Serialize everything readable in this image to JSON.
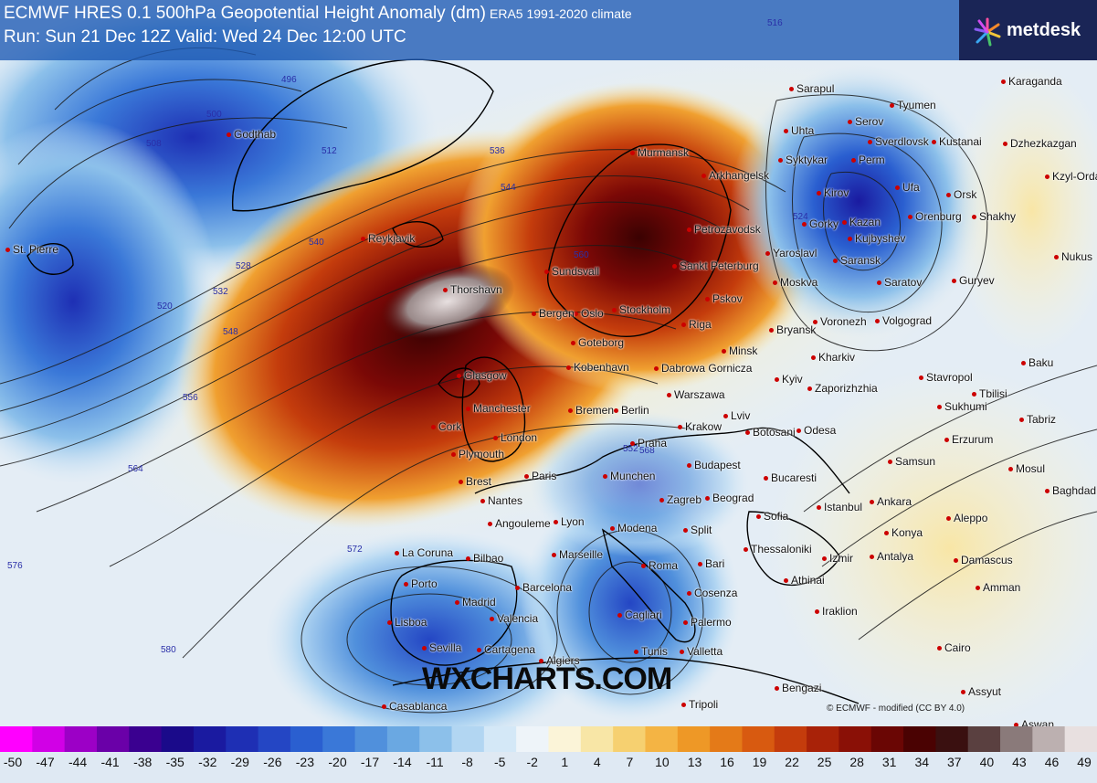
{
  "header": {
    "title": "ECMWF HRES 0.1 500hPa Geopotential Height Anomaly (dm)",
    "climate": "ERA5 1991-2020 climate",
    "run": "Run: Sun 21 Dec 12Z Valid: Wed 24 Dec 12:00 UTC"
  },
  "logo": {
    "text": "metdesk"
  },
  "watermark": "WXCHARTS.COM",
  "credit": "© ECMWF - modified (CC BY 4.0)",
  "colorbar": {
    "ticks": [
      "-50",
      "-47",
      "-44",
      "-41",
      "-38",
      "-35",
      "-32",
      "-29",
      "-26",
      "-23",
      "-20",
      "-17",
      "-14",
      "-11",
      "-8",
      "-5",
      "-2",
      "1",
      "4",
      "7",
      "10",
      "13",
      "16",
      "19",
      "22",
      "25",
      "28",
      "31",
      "34",
      "37",
      "40",
      "43",
      "46",
      "49"
    ],
    "colors": [
      "#ff00ff",
      "#d100e6",
      "#9c00c6",
      "#6a00a8",
      "#3a0090",
      "#1a0a8a",
      "#1a1aa0",
      "#1e2fb4",
      "#2446c4",
      "#2a5fd0",
      "#3a78d8",
      "#5090dc",
      "#6aa8e2",
      "#8cc0ea",
      "#b2d6f2",
      "#d4e8f7",
      "#eef4f9",
      "#fbf4d8",
      "#f8e6a6",
      "#f6d070",
      "#f4b444",
      "#ee9826",
      "#e47a18",
      "#d85a10",
      "#c43c0c",
      "#a82208",
      "#8a1006",
      "#6a0604",
      "#4a0202",
      "#3a1010",
      "#5a4040",
      "#8a7a7a",
      "#bcb0b0",
      "#e8e0e0"
    ]
  },
  "contour_labels": [
    "496",
    "500",
    "508",
    "512",
    "516",
    "520",
    "524",
    "528",
    "532",
    "536",
    "540",
    "544",
    "548",
    "552",
    "556",
    "560",
    "564",
    "568",
    "572",
    "576",
    "580"
  ],
  "cities": [
    {
      "name": "Godthab"
    },
    {
      "name": "St. Pierre"
    },
    {
      "name": "Reykjavik"
    },
    {
      "name": "Thorshavn"
    },
    {
      "name": "Murmansk"
    },
    {
      "name": "Arkhangelsk"
    },
    {
      "name": "Petrozavodsk"
    },
    {
      "name": "Sankt Peterburg"
    },
    {
      "name": "Pskov"
    },
    {
      "name": "Riga"
    },
    {
      "name": "Stockholm"
    },
    {
      "name": "Goteborg"
    },
    {
      "name": "Kobenhavn"
    },
    {
      "name": "Minsk"
    },
    {
      "name": "Warszawa"
    },
    {
      "name": "Glasgow"
    },
    {
      "name": "Manchester"
    },
    {
      "name": "London"
    },
    {
      "name": "Cork"
    },
    {
      "name": "Plymouth"
    },
    {
      "name": "Bremen"
    },
    {
      "name": "Berlin"
    },
    {
      "name": "Praha"
    },
    {
      "name": "Krakow"
    },
    {
      "name": "Lviv"
    },
    {
      "name": "Brest"
    },
    {
      "name": "Nantes"
    },
    {
      "name": "Paris"
    },
    {
      "name": "Munchen"
    },
    {
      "name": "Budapest"
    },
    {
      "name": "Zagreb"
    },
    {
      "name": "Beograd"
    },
    {
      "name": "Bucaresti"
    },
    {
      "name": "Sofia"
    },
    {
      "name": "Istanbul"
    },
    {
      "name": "Ankara"
    },
    {
      "name": "Angouleme"
    },
    {
      "name": "Lyon"
    },
    {
      "name": "Modena"
    },
    {
      "name": "Split"
    },
    {
      "name": "La Coruna"
    },
    {
      "name": "Bilbao"
    },
    {
      "name": "Marseille"
    },
    {
      "name": "Roma"
    },
    {
      "name": "Bari"
    },
    {
      "name": "Porto"
    },
    {
      "name": "Madrid"
    },
    {
      "name": "Barcelona"
    },
    {
      "name": "Valencia"
    },
    {
      "name": "Lisboa"
    },
    {
      "name": "Sevilla"
    },
    {
      "name": "Cartagena"
    },
    {
      "name": "Cagliari"
    },
    {
      "name": "Palermo"
    },
    {
      "name": "Tunis"
    },
    {
      "name": "Algiers"
    },
    {
      "name": "Valletta"
    },
    {
      "name": "Casablanca"
    },
    {
      "name": "Tripoli"
    },
    {
      "name": "Bengazi"
    },
    {
      "name": "Moskva"
    },
    {
      "name": "Yaroslavl"
    },
    {
      "name": "Bryansk"
    },
    {
      "name": "Voronezh"
    },
    {
      "name": "Kharkiv"
    },
    {
      "name": "Kyiv"
    },
    {
      "name": "Zaporizhzhia"
    },
    {
      "name": "Odesa"
    },
    {
      "name": "Saratov"
    },
    {
      "name": "Volgograd"
    },
    {
      "name": "Saransk"
    },
    {
      "name": "Kazan"
    },
    {
      "name": "Kirov"
    },
    {
      "name": "Perm"
    },
    {
      "name": "Ufa"
    },
    {
      "name": "Sarapul"
    },
    {
      "name": "Uhta"
    },
    {
      "name": "Syktykar"
    },
    {
      "name": "Serov"
    },
    {
      "name": "Tyumen"
    },
    {
      "name": "Sverdlovsk"
    },
    {
      "name": "Kustanai"
    },
    {
      "name": "Orsk"
    },
    {
      "name": "Orenburg"
    },
    {
      "name": "Kujbyshev"
    },
    {
      "name": "Gorky"
    },
    {
      "name": "Karaganda"
    },
    {
      "name": "Dzhezkazgan"
    },
    {
      "name": "Kzyl-Orda"
    },
    {
      "name": "Shakhy"
    },
    {
      "name": "Nukus"
    },
    {
      "name": "Guryev"
    },
    {
      "name": "Baku"
    },
    {
      "name": "Tbilisi"
    },
    {
      "name": "Tabriz"
    },
    {
      "name": "Sukhumi"
    },
    {
      "name": "Stavropol"
    },
    {
      "name": "Erzurum"
    },
    {
      "name": "Samsun"
    },
    {
      "name": "Mosul"
    },
    {
      "name": "Baghdad"
    },
    {
      "name": "Konya"
    },
    {
      "name": "Aleppo"
    },
    {
      "name": "Antalya"
    },
    {
      "name": "Damascus"
    },
    {
      "name": "Amman"
    },
    {
      "name": "Cairo"
    },
    {
      "name": "Assyut"
    },
    {
      "name": "Thessaloniki"
    },
    {
      "name": "Izmir"
    },
    {
      "name": "Athinai"
    },
    {
      "name": "Iraklion"
    },
    {
      "name": "Cosenza"
    },
    {
      "name": "Dabrowa Gornicza"
    },
    {
      "name": "Botosani"
    },
    {
      "name": "Oslo"
    },
    {
      "name": "Bergen"
    },
    {
      "name": "Sundsvall"
    },
    {
      "name": "Aswan"
    }
  ]
}
